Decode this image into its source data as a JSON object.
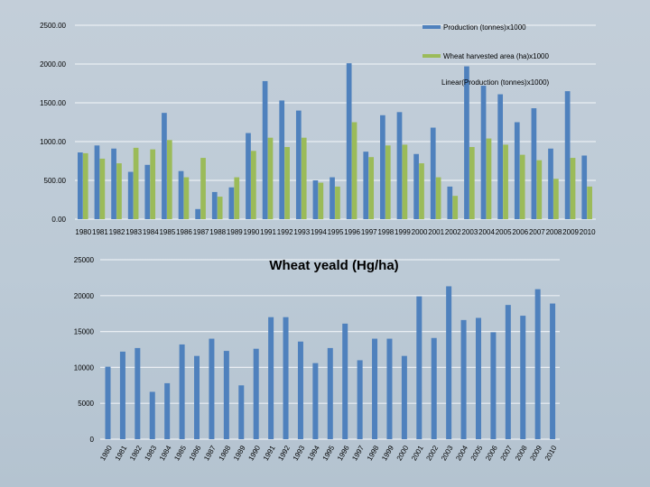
{
  "chart_data": [
    {
      "type": "bar",
      "title": "",
      "xlabel": "",
      "ylabel": "",
      "ylim": [
        0,
        2500
      ],
      "yticks": [
        "0.00",
        "500.00",
        "1000.00",
        "1500.00",
        "2000.00",
        "2500.00"
      ],
      "grid": true,
      "legend_position": "top-right",
      "categories": [
        "1980",
        "1981",
        "1982",
        "1983",
        "1984",
        "1985",
        "1986",
        "1987",
        "1988",
        "1989",
        "1990",
        "1991",
        "1992",
        "1993",
        "1994",
        "1995",
        "1996",
        "1997",
        "1998",
        "1999",
        "2000",
        "2001",
        "2002",
        "2003",
        "2004",
        "2005",
        "2006",
        "2007",
        "2008",
        "2009",
        "2010"
      ],
      "series": [
        {
          "name": "Production (tonnes)x1000",
          "color": "#4f81bd",
          "values": [
            860,
            950,
            910,
            610,
            700,
            1370,
            620,
            130,
            350,
            410,
            1110,
            1780,
            1530,
            1400,
            500,
            540,
            2010,
            870,
            1340,
            1380,
            840,
            1180,
            420,
            1970,
            1720,
            1610,
            1250,
            1430,
            910,
            1650,
            820
          ]
        },
        {
          "name": "Wheat harvested area (ha)x1000",
          "color": "#9bbb59",
          "values": [
            850,
            780,
            720,
            920,
            900,
            1020,
            540,
            790,
            290,
            540,
            880,
            1050,
            930,
            1050,
            470,
            420,
            1250,
            800,
            950,
            960,
            720,
            540,
            300,
            930,
            1040,
            960,
            830,
            760,
            520,
            790,
            420
          ]
        }
      ],
      "legend_extra": "Linear(Production (tonnes)x1000)"
    },
    {
      "type": "bar",
      "title": "Wheat yeald (Hg/ha)",
      "xlabel": "",
      "ylabel": "",
      "ylim": [
        0,
        25000
      ],
      "yticks": [
        "0",
        "5000",
        "10000",
        "15000",
        "20000",
        "25000"
      ],
      "grid": true,
      "categories": [
        "1980",
        "1981",
        "1982",
        "1983",
        "1984",
        "1985",
        "1986",
        "1987",
        "1988",
        "1989",
        "1990",
        "1991",
        "1992",
        "1993",
        "1994",
        "1995",
        "1996",
        "1997",
        "1998",
        "1999",
        "2000",
        "2001",
        "2002",
        "2003",
        "2004",
        "2005",
        "2006",
        "2007",
        "2008",
        "2009",
        "2010"
      ],
      "series": [
        {
          "name": "",
          "color": "#4f81bd",
          "values": [
            10100,
            12200,
            12700,
            6600,
            7800,
            13200,
            11600,
            14000,
            12300,
            7500,
            12600,
            17000,
            17000,
            13600,
            10600,
            12700,
            16100,
            11000,
            14000,
            14000,
            11600,
            19900,
            14100,
            21300,
            16600,
            16900,
            14900,
            18700,
            17200,
            20900,
            18900
          ]
        }
      ]
    }
  ]
}
